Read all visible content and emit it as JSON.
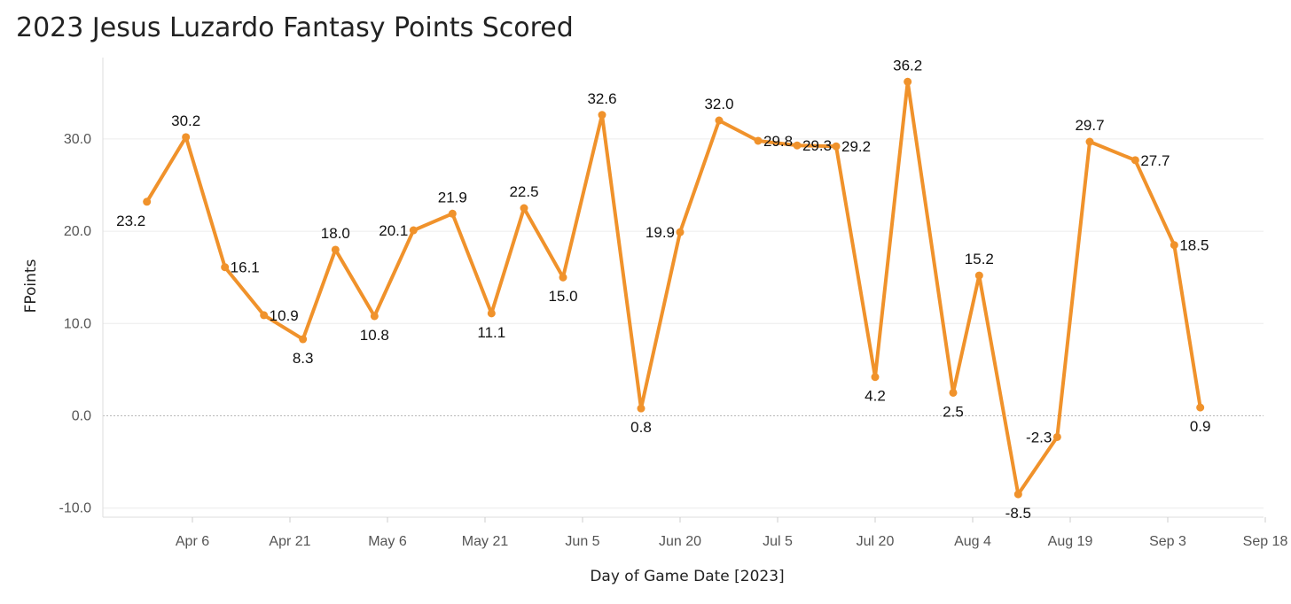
{
  "chart_data": {
    "type": "line",
    "title": "2023 Jesus Luzardo Fantasy Points Scored",
    "xlabel": "Day of Game Date [2023]",
    "ylabel": "FPoints",
    "ylim": [
      -10.0,
      30.0
    ],
    "y_ticks": [
      "30.0",
      "20.0",
      "10.0",
      "0.0",
      "-10.0"
    ],
    "x_ticks": [
      "Apr 6",
      "Apr 21",
      "May 6",
      "May 21",
      "Jun 5",
      "Jun 20",
      "Jul 5",
      "Jul 20",
      "Aug 4",
      "Aug 19",
      "Sep 3",
      "Sep 18"
    ],
    "grid": true,
    "line_color": "#f0922b",
    "series": [
      {
        "x": [
          "2023-03-30",
          "2023-04-05",
          "2023-04-11",
          "2023-04-17",
          "2023-04-23",
          "2023-04-28",
          "2023-05-04",
          "2023-05-10",
          "2023-05-16",
          "2023-05-22",
          "2023-05-27",
          "2023-06-02",
          "2023-06-08",
          "2023-06-14",
          "2023-06-20",
          "2023-06-26",
          "2023-07-02",
          "2023-07-08",
          "2023-07-14",
          "2023-07-20",
          "2023-07-25",
          "2023-08-01",
          "2023-08-05",
          "2023-08-11",
          "2023-08-17",
          "2023-08-22",
          "2023-08-29",
          "2023-09-04",
          "2023-09-08",
          "2023-09-14"
        ],
        "values": [
          23.2,
          30.2,
          16.1,
          10.9,
          8.3,
          18.0,
          10.8,
          20.1,
          21.9,
          11.1,
          22.5,
          15.0,
          32.6,
          0.8,
          19.9,
          32.0,
          29.8,
          29.3,
          29.2,
          4.2,
          36.2,
          2.5,
          15.2,
          -8.5,
          -2.3,
          29.7,
          27.7,
          18.5,
          0.9,
          null
        ],
        "labels": [
          "23.2",
          "30.2",
          "16.1",
          "10.9",
          "8.3",
          "18.0",
          "10.8",
          "20.1",
          "21.9",
          "11.1",
          "22.5",
          "15.0",
          "32.6",
          "0.8",
          "19.9",
          "32.0",
          "29.8",
          "29.3",
          "29.2",
          "4.2",
          "36.2",
          "2.5",
          "15.2",
          "-8.5",
          "-2.3",
          "29.7",
          "27.7",
          "18.5",
          "0.9"
        ]
      }
    ]
  }
}
